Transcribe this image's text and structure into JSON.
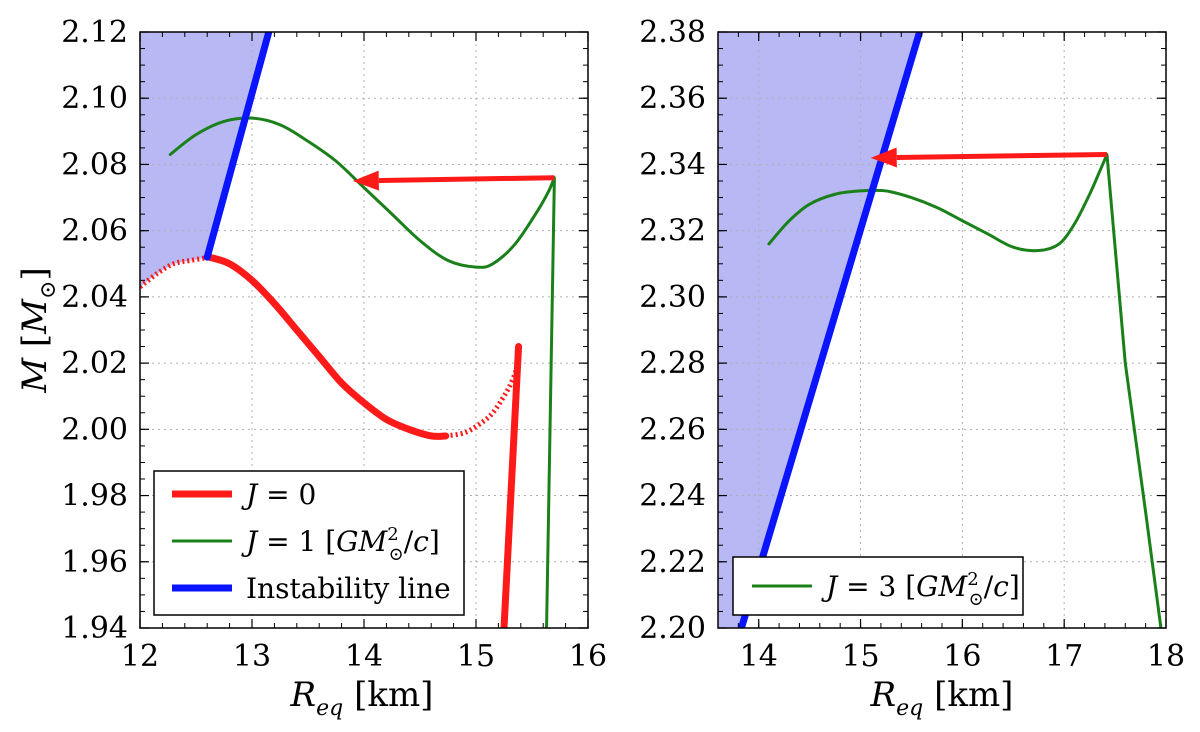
{
  "chart_data": [
    {
      "type": "line",
      "panel": "left",
      "xlabel": "R_eq [km]",
      "ylabel": "M [M_⊙]",
      "xlim": [
        12,
        16
      ],
      "ylim": [
        1.94,
        2.12
      ],
      "xticks": [
        "12",
        "13",
        "14",
        "15",
        "16"
      ],
      "yticks": [
        "1.94",
        "1.96",
        "1.98",
        "2.00",
        "2.02",
        "2.04",
        "2.06",
        "2.08",
        "2.10",
        "2.12"
      ],
      "grid": true,
      "legend_position": "lower-left",
      "series": [
        {
          "name": "J = 0",
          "color": "#ff1a1a",
          "style": "thick",
          "x": [
            12.62,
            12.8,
            13.0,
            13.2,
            13.4,
            13.6,
            13.8,
            14.0,
            14.2,
            14.4,
            14.6,
            14.73
          ],
          "y": [
            2.052,
            2.05,
            2.045,
            2.038,
            2.03,
            2.022,
            2.014,
            2.008,
            2.003,
            2.0,
            1.998,
            1.998
          ]
        },
        {
          "name": "J = 0 (unstable branch)",
          "color": "#ff1a1a",
          "style": "dotted",
          "x": [
            12.0,
            12.15,
            12.3,
            12.45,
            12.62
          ],
          "y": [
            2.043,
            2.047,
            2.05,
            2.051,
            2.052
          ]
        },
        {
          "name": "J = 0 (unstable branch)",
          "color": "#ff1a1a",
          "style": "dotted",
          "x": [
            14.73,
            14.9,
            15.05,
            15.15,
            15.25,
            15.3,
            15.35,
            15.38
          ],
          "y": [
            1.998,
            1.999,
            2.002,
            2.005,
            2.01,
            2.013,
            2.017,
            2.021
          ]
        },
        {
          "name": "J = 0 (branch)",
          "color": "#ff1a1a",
          "style": "thick",
          "x": [
            15.25,
            15.38
          ],
          "y": [
            1.94,
            2.025
          ]
        },
        {
          "name": "J = 1 [GM_⊙²/c]",
          "color": "#1a801a",
          "style": "solid",
          "x": [
            12.27,
            12.5,
            12.75,
            13.0,
            13.25,
            13.5,
            13.75,
            14.0,
            14.25,
            14.5,
            14.75,
            15.0,
            15.15,
            15.35,
            15.55,
            15.65,
            15.7,
            15.63
          ],
          "y": [
            2.083,
            2.089,
            2.093,
            2.094,
            2.092,
            2.087,
            2.081,
            2.073,
            2.065,
            2.057,
            2.051,
            2.049,
            2.05,
            2.056,
            2.066,
            2.072,
            2.076,
            1.94
          ]
        },
        {
          "name": "Instability line",
          "color": "#0a14ff",
          "style": "thick",
          "x": [
            12.6,
            13.15
          ],
          "y": [
            2.052,
            2.12
          ]
        }
      ],
      "annotations": [
        {
          "type": "arrow",
          "color": "#ff1a1a",
          "from": [
            15.7,
            2.076
          ],
          "to": [
            13.9,
            2.075
          ]
        }
      ],
      "shaded_region": {
        "color": "#b8b8f5",
        "boundary": "left of instability line"
      },
      "legend": [
        "J = 0",
        "J = 1 [GM_⊙²/c]",
        "Instability line"
      ]
    },
    {
      "type": "line",
      "panel": "right",
      "xlabel": "R_eq [km]",
      "ylabel": "",
      "xlim": [
        13.6,
        18
      ],
      "ylim": [
        2.2,
        2.38
      ],
      "xticks": [
        "14",
        "15",
        "16",
        "17",
        "18"
      ],
      "yticks": [
        "2.20",
        "2.22",
        "2.24",
        "2.26",
        "2.28",
        "2.30",
        "2.32",
        "2.34",
        "2.36",
        "2.38"
      ],
      "grid": true,
      "legend_position": "lower-left",
      "series": [
        {
          "name": "J = 3 [GM_⊙²/c]",
          "color": "#1a801a",
          "style": "solid",
          "x": [
            14.1,
            14.3,
            14.5,
            14.75,
            15.0,
            15.25,
            15.5,
            15.75,
            16.0,
            16.25,
            16.5,
            16.75,
            16.95,
            17.1,
            17.25,
            17.35,
            17.42,
            17.6,
            17.8,
            17.95
          ],
          "y": [
            2.316,
            2.323,
            2.328,
            2.331,
            2.332,
            2.332,
            2.33,
            2.327,
            2.323,
            2.319,
            2.315,
            2.314,
            2.316,
            2.322,
            2.331,
            2.338,
            2.343,
            2.28,
            2.235,
            2.2
          ]
        },
        {
          "name": "Instability line",
          "color": "#0a14ff",
          "style": "thick",
          "x": [
            13.83,
            15.58
          ],
          "y": [
            2.2,
            2.38
          ]
        }
      ],
      "annotations": [
        {
          "type": "arrow",
          "color": "#ff1a1a",
          "from": [
            17.42,
            2.343
          ],
          "to": [
            15.1,
            2.342
          ]
        }
      ],
      "shaded_region": {
        "color": "#b8b8f5",
        "boundary": "left of instability line"
      },
      "legend": [
        "J = 3 [GM_⊙²/c]"
      ]
    }
  ]
}
